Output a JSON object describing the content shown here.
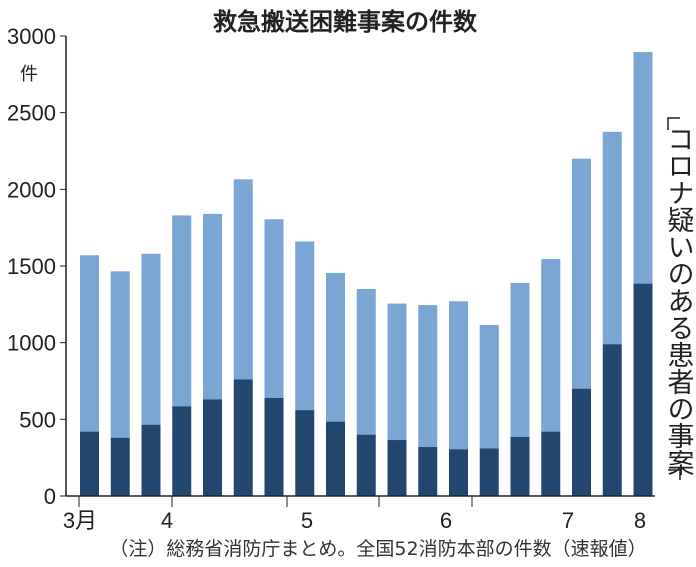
{
  "chart_data": {
    "type": "bar",
    "stacked": true,
    "title": "救急搬送困難事案の件数",
    "ylabel": "件",
    "ylim": [
      0,
      3000
    ],
    "yticks": [
      0,
      500,
      1000,
      1500,
      2000,
      2500,
      3000
    ],
    "month_labels": [
      "3月",
      "4",
      "5",
      "6",
      "7",
      "8"
    ],
    "series": [
      {
        "color": "#23466f",
        "values": [
          420,
          380,
          465,
          585,
          630,
          760,
          640,
          560,
          485,
          400,
          365,
          320,
          305,
          310,
          385,
          420,
          700,
          990,
          1385
        ]
      },
      {
        "color": "#7ba6d4",
        "totals": [
          1570,
          1465,
          1580,
          1830,
          1840,
          2065,
          1805,
          1660,
          1455,
          1350,
          1255,
          1245,
          1270,
          1115,
          1390,
          1545,
          2200,
          2375,
          2895
        ]
      }
    ],
    "annotation": "コロナ疑いのある患者の事案",
    "note": "（注）総務省消防庁まとめ。全国52消防本部の件数（速報値）",
    "grid": false
  }
}
